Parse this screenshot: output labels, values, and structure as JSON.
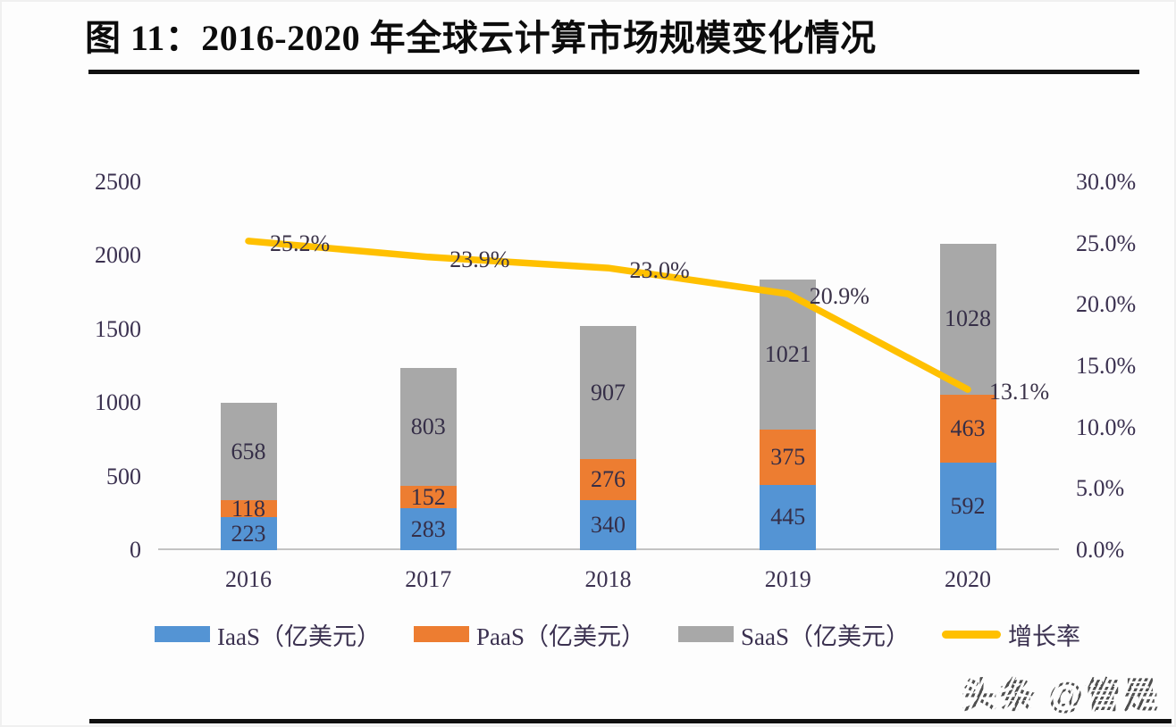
{
  "page": {
    "title": "图 11：2016-2020 年全球云计算市场规模变化情况",
    "watermark": "头条 @管是"
  },
  "colors": {
    "iaas_blue": "#5494D4",
    "paas_orange": "#ED7D31",
    "saas_gray": "#A8A8A8",
    "growth_yellow": "#FFC000",
    "axis_text": "#3B3150",
    "title_black": "#0c0c0c",
    "baseline_gray": "#C3C3C3"
  },
  "chart_data": {
    "type": "bar",
    "subtype": "stacked-bars-with-growth-line",
    "title": "图 11：2016-2020 年全球云计算市场规模变化情况",
    "categories": [
      "2016",
      "2017",
      "2018",
      "2019",
      "2020"
    ],
    "series": [
      {
        "key": "iaas",
        "name": "IaaS（亿美元）",
        "type": "bar",
        "color": "#5494D4",
        "values": [
          223,
          283,
          340,
          445,
          592
        ]
      },
      {
        "key": "paas",
        "name": "PaaS（亿美元）",
        "type": "bar",
        "color": "#ED7D31",
        "values": [
          118,
          152,
          276,
          375,
          463
        ]
      },
      {
        "key": "saas",
        "name": "SaaS（亿美元）",
        "type": "bar",
        "color": "#A8A8A8",
        "values": [
          658,
          803,
          907,
          1021,
          1028
        ]
      },
      {
        "key": "growth",
        "name": "增长率",
        "type": "line",
        "color": "#FFC000",
        "values": [
          25.2,
          23.9,
          23.0,
          20.9,
          13.1
        ],
        "labels": [
          "25.2%",
          "23.9%",
          "23.0%",
          "20.9%",
          "13.1%"
        ]
      }
    ],
    "left_axis": {
      "min": 0,
      "max": 2500,
      "ticks": [
        "2500",
        "2000",
        "1500",
        "1000",
        "500",
        "0"
      ]
    },
    "right_axis": {
      "min": 0,
      "max": 30,
      "ticks": [
        "30.0%",
        "25.0%",
        "20.0%",
        "15.0%",
        "10.0%",
        "5.0%",
        "0.0%"
      ]
    },
    "legend_position": "bottom",
    "grid": "off",
    "stacked": true
  }
}
